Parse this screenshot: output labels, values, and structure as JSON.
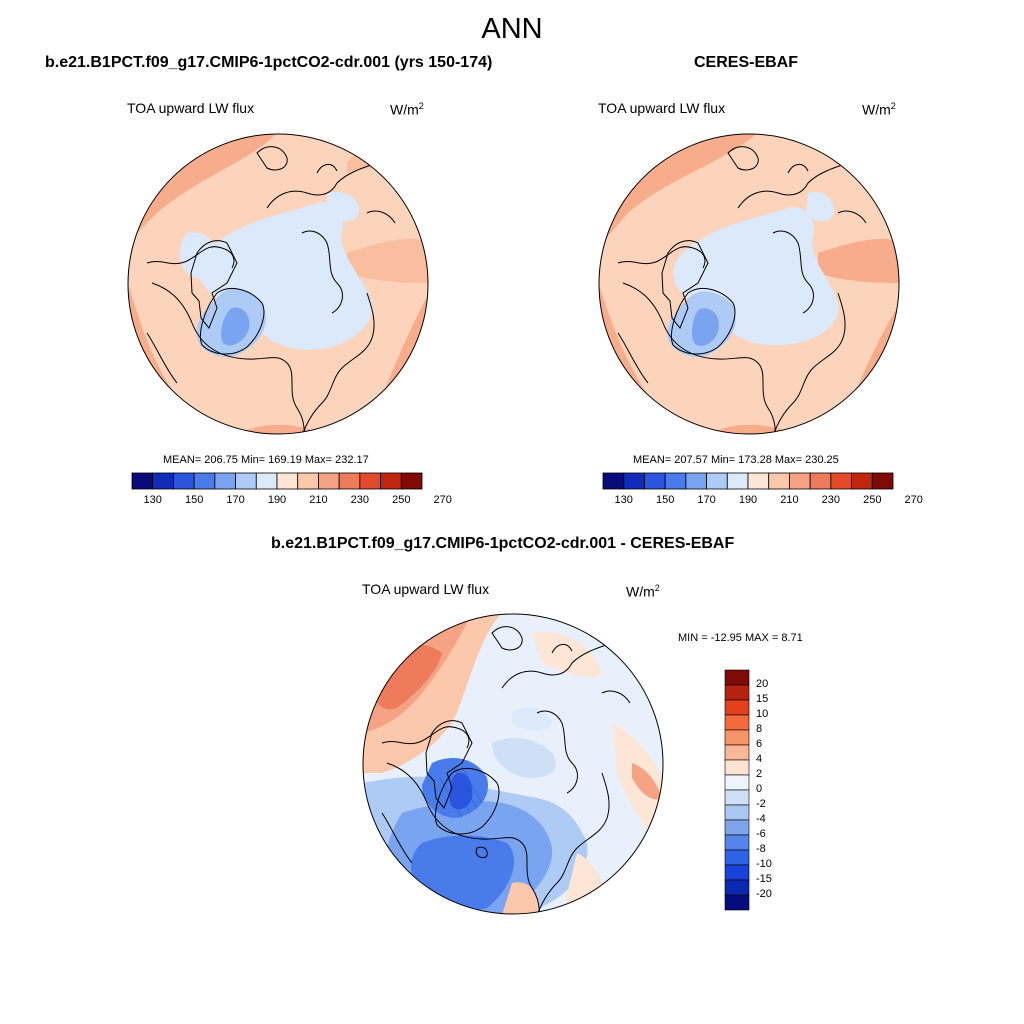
{
  "figure": {
    "title": "ANN",
    "panel_left": {
      "case_title": "b.e21.B1PCT.f09_g17.CMIP6-1pctCO2-cdr.001 (yrs 150-174)",
      "variable": "TOA upward LW flux",
      "units_base": "W/m",
      "units_exp": "2",
      "stats": "MEAN= 206.75  Min= 169.19  Max= 232.17"
    },
    "panel_right": {
      "case_title": "CERES-EBAF",
      "variable": "TOA upward LW flux",
      "units_base": "W/m",
      "units_exp": "2",
      "stats": "MEAN= 207.57  Min= 173.28  Max= 230.25"
    },
    "panel_diff": {
      "case_title": "b.e21.B1PCT.f09_g17.CMIP6-1pctCO2-cdr.001 - CERES-EBAF",
      "variable": "TOA upward LW flux",
      "units_base": "W/m",
      "units_exp": "2",
      "stats": "MIN = -12.95 MAX =   8.71"
    }
  },
  "colorbar_abs": {
    "colors": [
      "#0a0a7a",
      "#0f2bb8",
      "#2a55de",
      "#4a7bea",
      "#7aa3f0",
      "#aecbf5",
      "#dce9fa",
      "#fde6d6",
      "#fbc8ac",
      "#f6a284",
      "#ee7b5c",
      "#e34a2a",
      "#c0250f",
      "#7f0b06"
    ],
    "tick_labels": [
      "130",
      "150",
      "170",
      "190",
      "210",
      "230",
      "250",
      "270"
    ]
  },
  "colorbar_diff": {
    "colors": [
      "#7f0b06",
      "#b52310",
      "#e0401c",
      "#f46a3e",
      "#f79469",
      "#fab898",
      "#fde3d2",
      "#eef4fb",
      "#cfe0f6",
      "#aac6f2",
      "#7ea4ec",
      "#5585ea",
      "#2e63e6",
      "#1743d8",
      "#0a28b0",
      "#050c7e"
    ],
    "tick_labels": [
      "20",
      "15",
      "10",
      "8",
      "6",
      "4",
      "2",
      "0",
      "-2",
      "-4",
      "-6",
      "-8",
      "-10",
      "-15",
      "-20"
    ]
  }
}
